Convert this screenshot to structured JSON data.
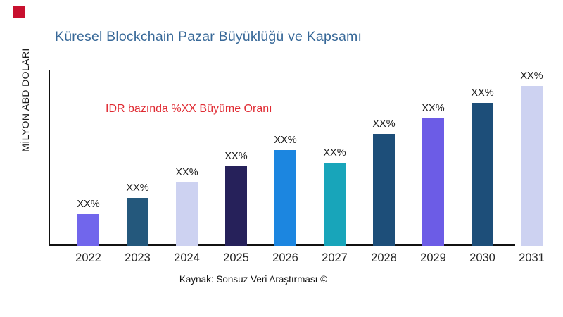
{
  "logo": {
    "shape": "square",
    "color": "#C8102E"
  },
  "header": {
    "title": "Küresel Blockchain Pazar Büyüklüğü ve Kapsamı",
    "title_color": "#376898"
  },
  "annotation": {
    "text": "IDR bazında %XX Büyüme Oranı",
    "color": "#E02B33"
  },
  "footer": {
    "source": "Kaynak: Sonsuz Veri Araştırması ©"
  },
  "chart_data": {
    "type": "bar",
    "title": "Küresel Blockchain Pazar Büyüklüğü ve Kapsamı",
    "xlabel": "",
    "ylabel": "MİLYON ABD DOLARI",
    "categories": [
      "2022",
      "2023",
      "2024",
      "2025",
      "2026",
      "2027",
      "2028",
      "2029",
      "2030",
      "2031"
    ],
    "values": [
      45,
      68,
      90,
      113,
      136,
      118,
      159,
      181,
      203,
      227
    ],
    "values_note": "relative bar heights in px; actual numeric values are masked in the image",
    "value_labels": [
      "XX%",
      "XX%",
      "XX%",
      "XX%",
      "XX%",
      "XX%",
      "XX%",
      "XX%",
      "XX%",
      "XX%"
    ],
    "bar_colors": [
      "#7166EC",
      "#24587C",
      "#CDD2F1",
      "#26215A",
      "#1C86E0",
      "#18A5BA",
      "#1D4E79",
      "#6C5CE6",
      "#1D4E79",
      "#CDD2F1"
    ],
    "grid": false,
    "legend": false,
    "yticks": [],
    "axis_color": "#111111"
  }
}
